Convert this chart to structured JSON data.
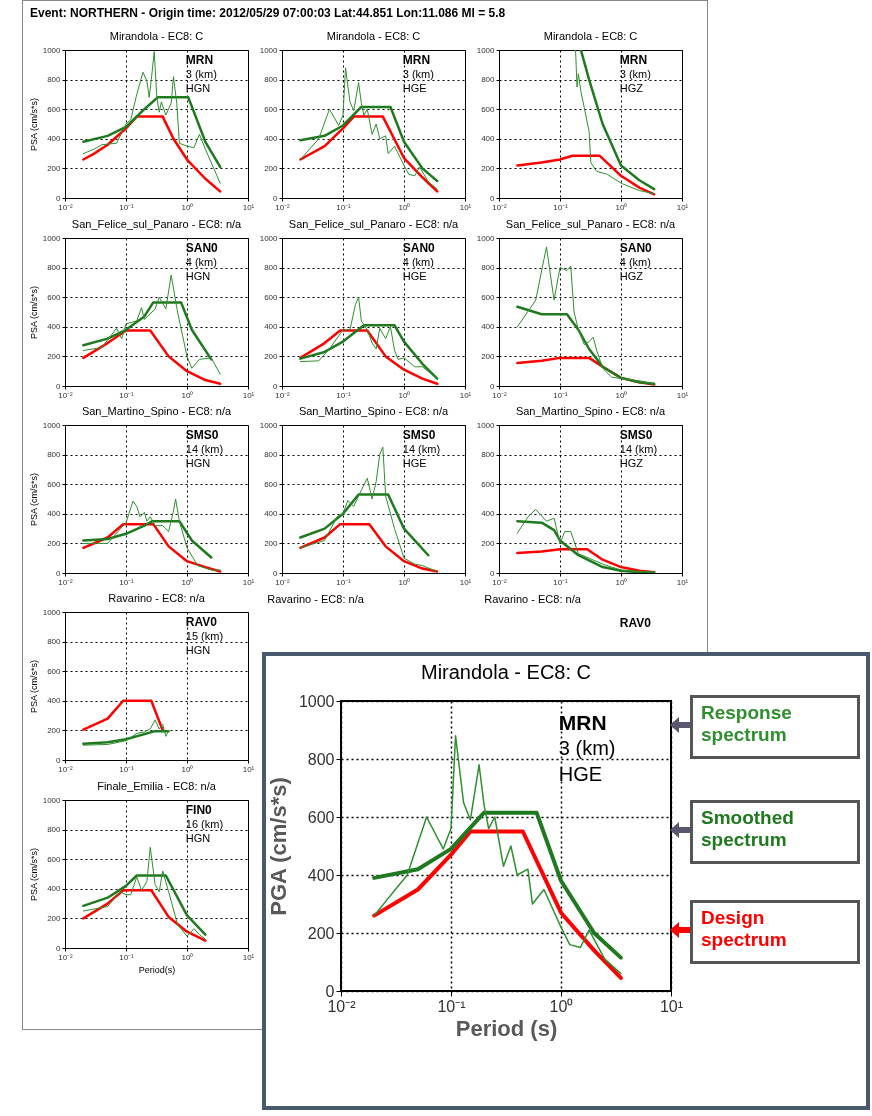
{
  "chart_data": [
    {
      "type": "other",
      "title": "Event: NORTHERN - Origin time: 2012/05/29 07:00:03 Lat:44.851 Lon:11.086 Ml = 5.8"
    },
    {
      "type": "line",
      "title": "Mirandola - EC8: C",
      "ylabel": "PSA (cm/s*s)",
      "log": "x",
      "grid": true,
      "xlim": [
        0.01,
        10
      ],
      "ylim": [
        0,
        1000
      ],
      "xticks": [
        {
          "value": 0.01,
          "label": "10⁻²"
        },
        {
          "value": 0.1,
          "label": "10⁻¹"
        },
        {
          "value": 1,
          "label": "10⁰"
        },
        {
          "value": 10,
          "label": "10¹"
        }
      ],
      "yticks": [
        0,
        200,
        400,
        600,
        800,
        1000
      ],
      "annotations": [
        "MRN",
        "3 (km)",
        "HGN"
      ],
      "series": [
        {
          "color": "#ff0000",
          "x": [
            0.02,
            0.03,
            0.05,
            0.1,
            0.15,
            0.4,
            0.6,
            1,
            2,
            3.5
          ],
          "values": [
            260,
            300,
            360,
            470,
            550,
            550,
            400,
            260,
            130,
            45
          ]
        },
        {
          "color": "#1f7a1f",
          "x": [
            0.02,
            0.05,
            0.1,
            0.2,
            0.33,
            1.05,
            2,
            3.5
          ],
          "values": [
            380,
            420,
            480,
            600,
            680,
            680,
            380,
            210
          ]
        },
        {
          "color": "#2f8f2f",
          "x": [
            0.02,
            0.03,
            0.04,
            0.07,
            0.1,
            0.12,
            0.15,
            0.19,
            0.22,
            0.24,
            0.26,
            0.29,
            0.32,
            0.35,
            0.38,
            0.45,
            0.55,
            0.6,
            0.68,
            0.75,
            1,
            1.3,
            1.6,
            2,
            3.5
          ],
          "values": [
            300,
            330,
            360,
            370,
            500,
            530,
            700,
            850,
            790,
            680,
            800,
            990,
            680,
            580,
            650,
            560,
            640,
            820,
            640,
            370,
            350,
            340,
            430,
            330,
            100
          ]
        }
      ]
    },
    {
      "type": "line",
      "title": "Mirandola - EC8: C",
      "log": "x",
      "grid": true,
      "xlim": [
        0.01,
        10
      ],
      "ylim": [
        0,
        1000
      ],
      "xticks": [
        {
          "value": 0.01,
          "label": "10⁻²"
        },
        {
          "value": 0.1,
          "label": "10⁻¹"
        },
        {
          "value": 1,
          "label": "10⁰"
        },
        {
          "value": 10,
          "label": "10¹"
        }
      ],
      "yticks": [
        0,
        200,
        400,
        600,
        800,
        1000
      ],
      "annotations": [
        "MRN",
        "3 (km)",
        "HGE"
      ],
      "series": [
        {
          "color": "#ff0000",
          "x": [
            0.02,
            0.05,
            0.1,
            0.15,
            0.45,
            1,
            2,
            3.5
          ],
          "values": [
            260,
            350,
            470,
            550,
            550,
            270,
            140,
            45
          ]
        },
        {
          "color": "#1f7a1f",
          "x": [
            0.02,
            0.05,
            0.1,
            0.2,
            0.6,
            1,
            2,
            3.5
          ],
          "values": [
            390,
            420,
            490,
            615,
            615,
            380,
            200,
            115
          ]
        },
        {
          "color": "#2f8f2f",
          "x": [
            0.02,
            0.04,
            0.06,
            0.085,
            0.1,
            0.11,
            0.13,
            0.15,
            0.18,
            0.2,
            0.22,
            0.25,
            0.3,
            0.35,
            0.4,
            0.5,
            0.55,
            0.7,
            1,
            1.2,
            1.5,
            1.8,
            2.5,
            3.5
          ],
          "values": [
            260,
            400,
            600,
            490,
            560,
            880,
            650,
            590,
            780,
            640,
            560,
            600,
            430,
            500,
            400,
            420,
            300,
            350,
            220,
            160,
            150,
            210,
            110,
            60
          ]
        }
      ]
    },
    {
      "type": "line",
      "title": "Mirandola - EC8: C",
      "log": "x",
      "grid": true,
      "xlim": [
        0.01,
        10
      ],
      "ylim": [
        0,
        1000
      ],
      "xticks": [
        {
          "value": 0.01,
          "label": "10⁻²"
        },
        {
          "value": 0.1,
          "label": "10⁻¹"
        },
        {
          "value": 1,
          "label": "10⁰"
        },
        {
          "value": 10,
          "label": "10¹"
        }
      ],
      "yticks": [
        0,
        200,
        400,
        600,
        800,
        1000
      ],
      "annotations": [
        "MRN",
        "3 (km)",
        "HGZ"
      ],
      "series": [
        {
          "color": "#ff0000",
          "x": [
            0.02,
            0.05,
            0.1,
            0.16,
            0.45,
            1,
            2,
            3.5
          ],
          "values": [
            220,
            240,
            260,
            285,
            285,
            150,
            70,
            25
          ]
        },
        {
          "color": "#1f7a1f",
          "x": [
            0.22,
            0.3,
            0.5,
            1,
            2,
            3.5
          ],
          "values": [
            1000,
            800,
            500,
            220,
            120,
            60
          ]
        },
        {
          "color": "#2f8f2f",
          "x": [
            0.18,
            0.19,
            0.2,
            0.22,
            0.25,
            0.3,
            0.32,
            0.4,
            0.6,
            1,
            2,
            3.5
          ],
          "values": [
            1000,
            750,
            840,
            720,
            610,
            450,
            240,
            180,
            160,
            100,
            50,
            30
          ]
        }
      ]
    },
    {
      "type": "line",
      "title": "San_Felice_sul_Panaro - EC8: n/a",
      "ylabel": "PSA (cm/s*s)",
      "log": "x",
      "grid": true,
      "xlim": [
        0.01,
        10
      ],
      "ylim": [
        0,
        1000
      ],
      "xticks": [
        {
          "value": 0.01,
          "label": "10⁻²"
        },
        {
          "value": 0.1,
          "label": "10⁻¹"
        },
        {
          "value": 1,
          "label": "10⁰"
        },
        {
          "value": 10,
          "label": "10¹"
        }
      ],
      "yticks": [
        0,
        200,
        400,
        600,
        800,
        1000
      ],
      "annotations": [
        "SAN0",
        "4 (km)",
        "HGN"
      ],
      "series": [
        {
          "color": "#ff0000",
          "x": [
            0.02,
            0.05,
            0.1,
            0.25,
            0.5,
            1,
            2,
            3.5
          ],
          "values": [
            190,
            290,
            375,
            375,
            200,
            100,
            40,
            15
          ]
        },
        {
          "color": "#1f7a1f",
          "x": [
            0.02,
            0.05,
            0.1,
            0.2,
            0.28,
            0.8,
            1.2,
            2.5
          ],
          "values": [
            275,
            320,
            380,
            470,
            565,
            565,
            380,
            180
          ]
        },
        {
          "color": "#2f8f2f",
          "x": [
            0.02,
            0.04,
            0.07,
            0.085,
            0.1,
            0.15,
            0.18,
            0.2,
            0.3,
            0.35,
            0.45,
            0.55,
            0.7,
            1,
            1.2,
            1.6,
            2.5,
            3.5
          ],
          "values": [
            240,
            260,
            390,
            320,
            420,
            440,
            530,
            450,
            520,
            600,
            520,
            750,
            500,
            200,
            120,
            180,
            190,
            80
          ]
        }
      ]
    },
    {
      "type": "line",
      "title": "San_Felice_sul_Panaro - EC8: n/a",
      "log": "x",
      "grid": true,
      "xlim": [
        0.01,
        10
      ],
      "ylim": [
        0,
        1000
      ],
      "xticks": [
        {
          "value": 0.01,
          "label": "10⁻²"
        },
        {
          "value": 0.1,
          "label": "10⁻¹"
        },
        {
          "value": 1,
          "label": "10⁰"
        },
        {
          "value": 10,
          "label": "10¹"
        }
      ],
      "yticks": [
        0,
        200,
        400,
        600,
        800,
        1000
      ],
      "annotations": [
        "SAN0",
        "4 (km)",
        "HGE"
      ],
      "series": [
        {
          "color": "#ff0000",
          "x": [
            0.02,
            0.05,
            0.09,
            0.25,
            0.5,
            1,
            2,
            3.5
          ],
          "values": [
            190,
            290,
            375,
            375,
            200,
            110,
            50,
            15
          ]
        },
        {
          "color": "#1f7a1f",
          "x": [
            0.02,
            0.05,
            0.1,
            0.22,
            0.7,
            1,
            2,
            3.5
          ],
          "values": [
            185,
            230,
            300,
            410,
            410,
            300,
            150,
            50
          ]
        },
        {
          "color": "#2f8f2f",
          "x": [
            0.02,
            0.04,
            0.06,
            0.1,
            0.13,
            0.16,
            0.18,
            0.2,
            0.25,
            0.3,
            0.35,
            0.4,
            0.5,
            0.6,
            0.7,
            0.8,
            1,
            1.5,
            2,
            3.5
          ],
          "values": [
            165,
            170,
            250,
            380,
            380,
            550,
            600,
            440,
            380,
            290,
            250,
            390,
            320,
            400,
            240,
            180,
            190,
            130,
            130,
            50
          ]
        }
      ]
    },
    {
      "type": "line",
      "title": "San_Felice_sul_Panaro - EC8: n/a",
      "log": "x",
      "grid": true,
      "xlim": [
        0.01,
        10
      ],
      "ylim": [
        0,
        1000
      ],
      "xticks": [
        {
          "value": 0.01,
          "label": "10⁻²"
        },
        {
          "value": 0.1,
          "label": "10⁻¹"
        },
        {
          "value": 1,
          "label": "10⁰"
        },
        {
          "value": 10,
          "label": "10¹"
        }
      ],
      "yticks": [
        0,
        200,
        400,
        600,
        800,
        1000
      ],
      "annotations": [
        "SAN0",
        "4 (km)",
        "HGZ"
      ],
      "series": [
        {
          "color": "#ff0000",
          "x": [
            0.02,
            0.05,
            0.1,
            0.3,
            0.5,
            1,
            2,
            3.5
          ],
          "values": [
            155,
            170,
            190,
            190,
            130,
            55,
            25,
            10
          ]
        },
        {
          "color": "#1f7a1f",
          "x": [
            0.02,
            0.05,
            0.13,
            0.2,
            0.3,
            0.5,
            1,
            2,
            3.5
          ],
          "values": [
            535,
            485,
            485,
            380,
            250,
            130,
            55,
            25,
            15
          ]
        },
        {
          "color": "#2f8f2f",
          "x": [
            0.02,
            0.04,
            0.06,
            0.08,
            0.1,
            0.13,
            0.15,
            0.17,
            0.2,
            0.25,
            0.3,
            0.35,
            0.4,
            0.5,
            0.7,
            1,
            2,
            3.5
          ],
          "values": [
            400,
            580,
            940,
            580,
            800,
            780,
            810,
            500,
            380,
            280,
            300,
            330,
            240,
            120,
            60,
            50,
            35,
            15
          ]
        }
      ]
    },
    {
      "type": "line",
      "title": "San_Martino_Spino - EC8: n/a",
      "ylabel": "PSA (cm/s*s)",
      "log": "x",
      "grid": true,
      "xlim": [
        0.01,
        10
      ],
      "ylim": [
        0,
        1000
      ],
      "xticks": [
        {
          "value": 0.01,
          "label": "10⁻²"
        },
        {
          "value": 0.1,
          "label": "10⁻¹"
        },
        {
          "value": 1,
          "label": "10⁰"
        },
        {
          "value": 10,
          "label": "10¹"
        }
      ],
      "yticks": [
        0,
        200,
        400,
        600,
        800,
        1000
      ],
      "annotations": [
        "SMS0",
        "14 (km)",
        "HGN"
      ],
      "series": [
        {
          "color": "#ff0000",
          "x": [
            0.02,
            0.05,
            0.09,
            0.28,
            0.5,
            1,
            2,
            3.5
          ],
          "values": [
            170,
            240,
            330,
            330,
            180,
            80,
            40,
            10
          ]
        },
        {
          "color": "#1f7a1f",
          "x": [
            0.02,
            0.05,
            0.1,
            0.2,
            0.27,
            0.75,
            1.2,
            2.5
          ],
          "values": [
            220,
            230,
            265,
            320,
            350,
            350,
            220,
            105
          ]
        },
        {
          "color": "#2f8f2f",
          "x": [
            0.02,
            0.05,
            0.07,
            0.1,
            0.13,
            0.15,
            0.17,
            0.2,
            0.22,
            0.25,
            0.3,
            0.4,
            0.5,
            0.6,
            0.65,
            0.75,
            1,
            1.5,
            2.5,
            3.5
          ],
          "values": [
            200,
            200,
            270,
            340,
            485,
            450,
            380,
            410,
            350,
            380,
            320,
            320,
            280,
            420,
            500,
            350,
            170,
            50,
            20,
            20
          ]
        }
      ]
    },
    {
      "type": "line",
      "title": "San_Martino_Spino - EC8: n/a",
      "log": "x",
      "grid": true,
      "xlim": [
        0.01,
        10
      ],
      "ylim": [
        0,
        1000
      ],
      "xticks": [
        {
          "value": 0.01,
          "label": "10⁻²"
        },
        {
          "value": 0.1,
          "label": "10⁻¹"
        },
        {
          "value": 1,
          "label": "10⁰"
        },
        {
          "value": 10,
          "label": "10¹"
        }
      ],
      "yticks": [
        0,
        200,
        400,
        600,
        800,
        1000
      ],
      "annotations": [
        "SMS0",
        "14 (km)",
        "HGE"
      ],
      "series": [
        {
          "color": "#ff0000",
          "x": [
            0.02,
            0.05,
            0.09,
            0.27,
            0.5,
            1,
            2,
            3.5
          ],
          "values": [
            170,
            240,
            330,
            330,
            180,
            80,
            30,
            10
          ]
        },
        {
          "color": "#1f7a1f",
          "x": [
            0.02,
            0.05,
            0.1,
            0.18,
            0.55,
            1,
            2.5
          ],
          "values": [
            240,
            300,
            400,
            530,
            530,
            300,
            120
          ]
        },
        {
          "color": "#2f8f2f",
          "x": [
            0.02,
            0.05,
            0.08,
            0.1,
            0.12,
            0.15,
            0.2,
            0.25,
            0.3,
            0.35,
            0.4,
            0.45,
            0.5,
            0.7,
            1,
            1.5,
            2,
            3.5
          ],
          "values": [
            170,
            220,
            380,
            400,
            490,
            450,
            560,
            640,
            500,
            620,
            800,
            850,
            520,
            300,
            100,
            60,
            50,
            10
          ]
        }
      ]
    },
    {
      "type": "line",
      "title": "San_Martino_Spino - EC8: n/a",
      "log": "x",
      "grid": true,
      "xlim": [
        0.01,
        10
      ],
      "ylim": [
        0,
        1000
      ],
      "xticks": [
        {
          "value": 0.01,
          "label": "10⁻²"
        },
        {
          "value": 0.1,
          "label": "10⁻¹"
        },
        {
          "value": 1,
          "label": "10⁰"
        },
        {
          "value": 10,
          "label": "10¹"
        }
      ],
      "yticks": [
        0,
        200,
        400,
        600,
        800,
        1000
      ],
      "annotations": [
        "SMS0",
        "14 (km)",
        "HGZ"
      ],
      "series": [
        {
          "color": "#ff0000",
          "x": [
            0.02,
            0.05,
            0.1,
            0.28,
            0.5,
            1,
            2,
            3.5
          ],
          "values": [
            135,
            145,
            160,
            160,
            90,
            40,
            15,
            5
          ]
        },
        {
          "color": "#1f7a1f",
          "x": [
            0.02,
            0.05,
            0.08,
            0.1,
            0.2,
            0.5,
            1,
            2,
            3.5
          ],
          "values": [
            350,
            340,
            290,
            220,
            120,
            40,
            15,
            5,
            2
          ]
        },
        {
          "color": "#2f8f2f",
          "x": [
            0.02,
            0.03,
            0.04,
            0.06,
            0.08,
            0.1,
            0.12,
            0.15,
            0.2,
            0.3,
            0.5,
            1,
            2,
            3.5
          ],
          "values": [
            270,
            380,
            430,
            350,
            370,
            200,
            280,
            280,
            130,
            100,
            60,
            20,
            10,
            5
          ]
        }
      ]
    },
    {
      "type": "line",
      "title": "Ravarino - EC8: n/a",
      "ylabel": "PSA (cm/s*s)",
      "log": "x",
      "grid": true,
      "xlim": [
        0.01,
        10
      ],
      "ylim": [
        0,
        1000
      ],
      "xticks": [
        {
          "value": 0.01,
          "label": "10⁻²"
        },
        {
          "value": 0.1,
          "label": "10⁻¹"
        },
        {
          "value": 1,
          "label": "10⁰"
        },
        {
          "value": 10,
          "label": "10¹"
        }
      ],
      "yticks": [
        0,
        200,
        400,
        600,
        800,
        1000
      ],
      "annotations": [
        "RAV0",
        "15 (km)",
        "HGN"
      ],
      "series": [
        {
          "color": "#ff0000",
          "x": [
            0.02,
            0.05,
            0.09,
            0.26,
            0.4
          ],
          "values": [
            205,
            280,
            400,
            400,
            200
          ]
        },
        {
          "color": "#1f7a1f",
          "x": [
            0.02,
            0.05,
            0.1,
            0.3,
            0.5
          ],
          "values": [
            110,
            120,
            140,
            195,
            195
          ]
        },
        {
          "color": "#2f8f2f",
          "x": [
            0.02,
            0.05,
            0.1,
            0.15,
            0.2,
            0.25,
            0.3,
            0.35,
            0.4,
            0.45,
            0.5
          ],
          "values": [
            100,
            105,
            130,
            180,
            190,
            210,
            270,
            210,
            240,
            160,
            200
          ]
        }
      ]
    },
    {
      "type": "other",
      "title": "Ravarino - EC8: n/a"
    },
    {
      "type": "other",
      "title": "Ravarino - EC8: n/a",
      "annotations": [
        "RAV0"
      ]
    },
    {
      "type": "line",
      "title": "Finale_Emilia - EC8: n/a",
      "xlabel": "Period(s)",
      "ylabel": "PSA (cm/s*s)",
      "log": "x",
      "grid": true,
      "xlim": [
        0.01,
        10
      ],
      "ylim": [
        0,
        1000
      ],
      "xticks": [
        {
          "value": 0.01,
          "label": "10⁻²"
        },
        {
          "value": 0.1,
          "label": "10⁻¹"
        },
        {
          "value": 1,
          "label": "10⁰"
        },
        {
          "value": 10,
          "label": "10¹"
        }
      ],
      "yticks": [
        0,
        200,
        400,
        600,
        800,
        1000
      ],
      "annotations": [
        "FIN0",
        "16 (km)",
        "HGN"
      ],
      "series": [
        {
          "color": "#ff0000",
          "x": [
            0.02,
            0.05,
            0.09,
            0.26,
            0.5,
            1,
            2
          ],
          "values": [
            200,
            300,
            390,
            390,
            210,
            110,
            50
          ]
        },
        {
          "color": "#1f7a1f",
          "x": [
            0.02,
            0.05,
            0.1,
            0.15,
            0.45,
            1,
            2
          ],
          "values": [
            285,
            340,
            420,
            490,
            490,
            220,
            90
          ]
        },
        {
          "color": "#2f8f2f",
          "x": [
            0.02,
            0.05,
            0.08,
            0.1,
            0.12,
            0.15,
            0.18,
            0.22,
            0.25,
            0.3,
            0.35,
            0.4,
            0.5,
            0.7,
            1,
            1.3,
            1.6,
            2
          ],
          "values": [
            250,
            280,
            380,
            360,
            360,
            480,
            390,
            450,
            680,
            430,
            380,
            520,
            380,
            160,
            80,
            130,
            90,
            60
          ]
        }
      ]
    },
    {
      "type": "line",
      "title": "Mirandola - EC8: C",
      "xlabel": "Period (s)",
      "ylabel": "PGA (cm/s*s)",
      "log": "x",
      "grid": true,
      "xlim": [
        0.01,
        10
      ],
      "ylim": [
        0,
        1000
      ],
      "xticks": [
        {
          "value": 0.01,
          "label": "10⁻²"
        },
        {
          "value": 0.1,
          "label": "10⁻¹"
        },
        {
          "value": 1,
          "label": "10⁰"
        },
        {
          "value": 10,
          "label": "10¹"
        }
      ],
      "yticks": [
        0,
        200,
        400,
        600,
        800,
        1000
      ],
      "annotations": [
        "MRN",
        "3 (km)",
        "HGE"
      ],
      "series": [
        {
          "name": "Design spectrum",
          "color": "#ff0000",
          "x": [
            0.02,
            0.05,
            0.1,
            0.15,
            0.45,
            1,
            2,
            3.5
          ],
          "values": [
            260,
            350,
            470,
            550,
            550,
            270,
            140,
            45
          ]
        },
        {
          "name": "Smoothed spectrum",
          "color": "#1f7a1f",
          "x": [
            0.02,
            0.05,
            0.1,
            0.2,
            0.6,
            1,
            2,
            3.5
          ],
          "values": [
            390,
            420,
            490,
            615,
            615,
            380,
            200,
            115
          ]
        },
        {
          "name": "Response spectrum",
          "color": "#2f8f2f",
          "x": [
            0.02,
            0.04,
            0.06,
            0.085,
            0.1,
            0.11,
            0.13,
            0.15,
            0.18,
            0.2,
            0.22,
            0.25,
            0.3,
            0.35,
            0.4,
            0.5,
            0.55,
            0.7,
            1,
            1.2,
            1.5,
            1.8,
            2.5,
            3.5
          ],
          "values": [
            260,
            400,
            600,
            490,
            560,
            880,
            650,
            590,
            780,
            640,
            560,
            600,
            430,
            500,
            400,
            420,
            300,
            350,
            220,
            160,
            150,
            210,
            110,
            60
          ]
        }
      ]
    }
  ]
}
